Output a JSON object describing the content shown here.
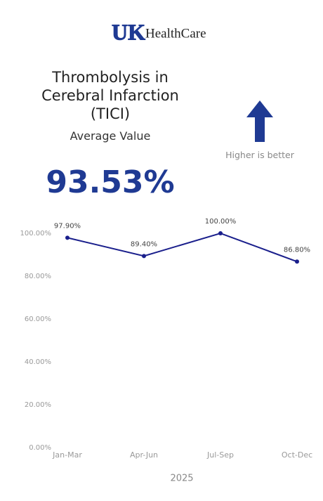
{
  "header": {
    "logo_mark": "UK",
    "logo_text": "HealthCare"
  },
  "metric": {
    "title": "Thrombolysis in Cerebral Infarction (TICI)",
    "subtitle": "Average Value",
    "value": "93.53%",
    "direction_note": "Higher is better"
  },
  "chart_data": {
    "type": "line",
    "xlabel": "2025",
    "categories": [
      "Jan-Mar",
      "Apr-Jun",
      "Jul-Sep",
      "Oct-Dec"
    ],
    "series": [
      {
        "name": "TICI",
        "color": "#1a1f8c",
        "values": [
          97.9,
          89.4,
          100,
          86.8
        ],
        "value_labels": [
          "97.90%",
          "89.40%",
          "100.00%",
          "86.80%"
        ]
      }
    ],
    "ylim": [
      0,
      100
    ],
    "yticks": [
      {
        "value": 0,
        "label": "0.00%"
      },
      {
        "value": 20,
        "label": "20.00%"
      },
      {
        "value": 40,
        "label": "40.00%"
      },
      {
        "value": 60,
        "label": "60.00%"
      },
      {
        "value": 80,
        "label": "80.00%"
      },
      {
        "value": 100,
        "label": "100.00%"
      }
    ],
    "grid": false
  }
}
